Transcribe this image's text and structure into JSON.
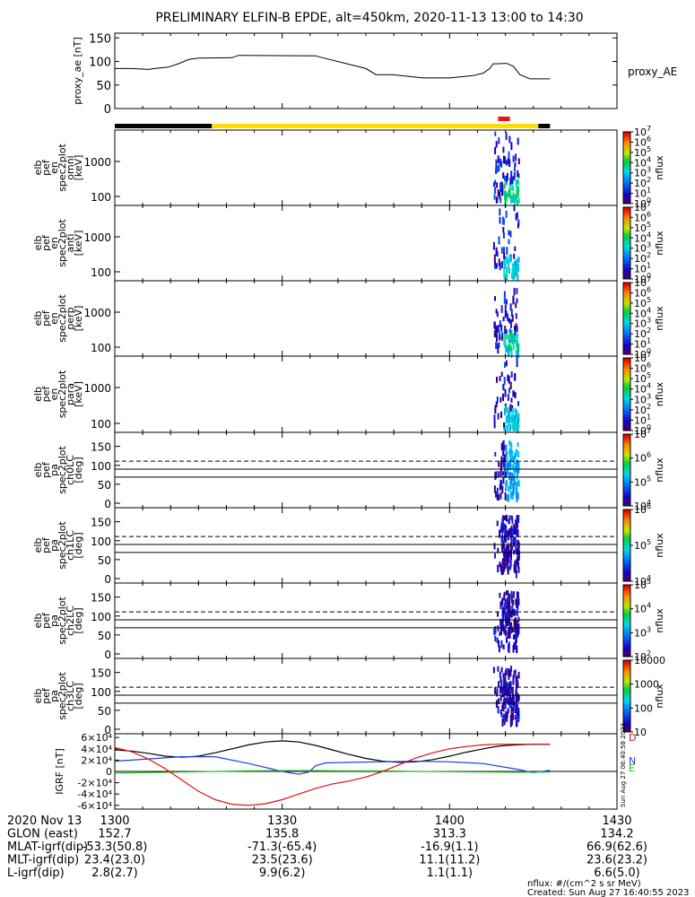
{
  "title": "PRELIMINARY ELFIN-B EPDE, alt=450km, 2020-11-13 13:00 to 14:30",
  "colors": {
    "ae_line": "#000000",
    "bar_black": "#000000",
    "bar_yellow": "#ffdd00",
    "bar_red": "#ee1111",
    "grf_x": "#000000",
    "grf_y": "#1e3ee0",
    "grf_z": "#22bb22",
    "grf_d": "#dd1111"
  },
  "chart_data": [
    {
      "type": "line",
      "id": "proxy_ae",
      "ylabel": "proxy_ae [nT]",
      "series_label": "proxy_AE",
      "yticks": [
        "0",
        "50",
        "100",
        "150"
      ],
      "ylim": [
        0,
        160
      ],
      "x": [
        13.0,
        13.05,
        13.1,
        13.12,
        13.16,
        13.19,
        13.22,
        13.25,
        13.35,
        13.37,
        13.6,
        13.62,
        13.75,
        13.78,
        13.83,
        13.92,
        14.0,
        14.03,
        14.07,
        14.1,
        14.12,
        14.13,
        14.14,
        14.17,
        14.19,
        14.21,
        14.24,
        14.3
      ],
      "values": [
        85,
        85,
        83,
        85,
        88,
        95,
        104,
        107,
        108,
        113,
        112,
        108,
        85,
        72,
        72,
        65,
        65,
        67,
        70,
        75,
        85,
        95,
        95,
        96,
        90,
        72,
        63,
        63
      ]
    },
    {
      "type": "bar",
      "id": "orbit_status_bar",
      "segments": [
        {
          "start": 13.0,
          "end": 13.29,
          "color": "black"
        },
        {
          "start": 13.29,
          "end": 14.265,
          "color": "yellow"
        },
        {
          "start": 14.265,
          "end": 14.3,
          "color": "black"
        }
      ],
      "science_zone": {
        "start": 14.145,
        "end": 14.18,
        "color": "red"
      }
    },
    {
      "type": "heatmap",
      "id": "en_omni",
      "ylabel_lines": [
        "elb",
        "pef",
        "en",
        "spec2plot",
        "omni",
        "[keV]"
      ],
      "yticks": [
        "100",
        "1000"
      ],
      "colorbar": {
        "label": "nflux",
        "ticks": [
          "10",
          "10",
          "10",
          "10",
          "10",
          "10",
          "10",
          "10"
        ],
        "exponents": [
          "0",
          "1",
          "2",
          "3",
          "4",
          "5",
          "6",
          "7"
        ]
      }
    },
    {
      "type": "heatmap",
      "id": "en_anti",
      "ylabel_lines": [
        "elb",
        "pef",
        "en",
        "spec2plot",
        "anti",
        "[keV]"
      ],
      "yticks": [
        "100",
        "1000"
      ],
      "colorbar": {
        "label": "nflux",
        "ticks": [
          "10",
          "10",
          "10",
          "10",
          "10",
          "10",
          "10",
          "10"
        ],
        "exponents": [
          "0",
          "1",
          "2",
          "3",
          "4",
          "5",
          "6",
          "7"
        ]
      }
    },
    {
      "type": "heatmap",
      "id": "en_perp",
      "ylabel_lines": [
        "elb",
        "pef",
        "en",
        "spec2plot",
        "perp",
        "[keV]"
      ],
      "yticks": [
        "100",
        "1000"
      ],
      "colorbar": {
        "label": "nflux",
        "ticks": [
          "10",
          "10",
          "10",
          "10",
          "10",
          "10",
          "10",
          "10"
        ],
        "exponents": [
          "0",
          "1",
          "2",
          "3",
          "4",
          "5",
          "6",
          "7"
        ]
      }
    },
    {
      "type": "heatmap",
      "id": "en_para",
      "ylabel_lines": [
        "elb",
        "pef",
        "en",
        "spec2plot",
        "para",
        "[keV]"
      ],
      "yticks": [
        "100",
        "1000"
      ],
      "colorbar": {
        "label": "nflux",
        "ticks": [
          "10",
          "10",
          "10",
          "10",
          "10",
          "10",
          "10",
          "10"
        ],
        "exponents": [
          "0",
          "1",
          "2",
          "3",
          "4",
          "5",
          "6",
          "7"
        ]
      }
    },
    {
      "type": "heatmap",
      "id": "pa_ch0",
      "ylabel_lines": [
        "elb",
        "pef",
        "pa",
        "spec2plot",
        "ch0LC",
        "[deg]"
      ],
      "yticks": [
        "0",
        "50",
        "100",
        "150"
      ],
      "ylim": [
        0,
        180
      ],
      "loss_cone_lines": {
        "dashed": 111,
        "solid": [
          90,
          69
        ]
      },
      "colorbar": {
        "label": "nflux",
        "ticks": [
          "10",
          "10",
          "10",
          "10"
        ],
        "exponents": [
          "4",
          "5",
          "6",
          "7"
        ]
      }
    },
    {
      "type": "heatmap",
      "id": "pa_ch1",
      "ylabel_lines": [
        "elb",
        "pef",
        "pa",
        "spec2plot",
        "ch1LC",
        "[deg]"
      ],
      "yticks": [
        "0",
        "50",
        "100",
        "150"
      ],
      "ylim": [
        0,
        180
      ],
      "loss_cone_lines": {
        "dashed": 111,
        "solid": [
          90,
          69
        ]
      },
      "colorbar": {
        "label": "nflux",
        "ticks": [
          "10",
          "10",
          "10"
        ],
        "exponents": [
          "4",
          "5",
          "6"
        ]
      }
    },
    {
      "type": "heatmap",
      "id": "pa_ch2",
      "ylabel_lines": [
        "elb",
        "pef",
        "pa",
        "spec2plot",
        "ch2LC",
        "[deg]"
      ],
      "yticks": [
        "0",
        "50",
        "100",
        "150"
      ],
      "ylim": [
        0,
        180
      ],
      "loss_cone_lines": {
        "dashed": 111,
        "solid": [
          90,
          69
        ]
      },
      "colorbar": {
        "label": "nflux",
        "ticks": [
          "10",
          "10",
          "10",
          "10"
        ],
        "exponents": [
          "2",
          "3",
          "4",
          "5"
        ]
      }
    },
    {
      "type": "heatmap",
      "id": "pa_ch3",
      "ylabel_lines": [
        "elb",
        "pef",
        "pa",
        "spec2plot",
        "ch3LC",
        "[deg]"
      ],
      "yticks": [
        "0",
        "50",
        "100",
        "150"
      ],
      "ylim": [
        0,
        180
      ],
      "loss_cone_lines": {
        "dashed": 111,
        "solid": [
          90,
          69
        ]
      },
      "colorbar": {
        "label": "nflux",
        "ticks": [
          "10",
          "100",
          "1000",
          "10000"
        ]
      }
    },
    {
      "type": "line",
      "id": "igrf",
      "ylabel": "IGRF [nT]",
      "yticks": [
        "-6×10⁴",
        "-4×10⁴",
        "-2×10⁴",
        "0",
        "2×10⁴",
        "4×10⁴",
        "6×10⁴"
      ],
      "ylim": [
        -65000,
        65000
      ],
      "series": [
        {
          "name": "X",
          "x": [
            13.0,
            13.05,
            13.1,
            13.15,
            13.2,
            13.25,
            13.3,
            13.35,
            13.4,
            13.45,
            13.5,
            13.55,
            13.6,
            13.65,
            13.7,
            13.75,
            13.8,
            13.85,
            13.9,
            13.95,
            14.0,
            14.05,
            14.1,
            14.15,
            14.2,
            14.25,
            14.3
          ],
          "values": [
            38000,
            36000,
            32000,
            27000,
            25000,
            27000,
            33000,
            40000,
            47000,
            52000,
            54000,
            52000,
            46000,
            38000,
            30000,
            23000,
            18000,
            16000,
            17000,
            21000,
            27000,
            34000,
            40000,
            45000,
            47000,
            48000,
            48000
          ]
        },
        {
          "name": "Y",
          "x": [
            13.0,
            13.1,
            13.2,
            13.3,
            13.4,
            13.5,
            13.55,
            13.58,
            13.6,
            13.63,
            13.7,
            13.8,
            13.9,
            14.0,
            14.1,
            14.2,
            14.25,
            14.3
          ],
          "values": [
            18000,
            22000,
            26000,
            26000,
            14000,
            0,
            -5000,
            -1000,
            10000,
            15000,
            16000,
            17000,
            18000,
            17000,
            14000,
            4000,
            -2000,
            2000
          ]
        },
        {
          "name": "Z",
          "x": [
            13.0,
            13.1,
            13.2,
            13.3,
            13.4,
            13.5,
            13.6,
            13.7,
            13.8,
            13.9,
            14.0,
            14.1,
            14.2,
            14.3
          ],
          "values": [
            -3000,
            -2000,
            -1000,
            0,
            1000,
            1500,
            1500,
            1000,
            1000,
            0,
            -500,
            -1000,
            -1500,
            -1000
          ]
        },
        {
          "name": "D",
          "x": [
            13.0,
            13.05,
            13.1,
            13.15,
            13.2,
            13.25,
            13.3,
            13.35,
            13.4,
            13.45,
            13.5,
            13.55,
            13.6,
            13.65,
            13.7,
            13.75,
            13.8,
            13.85,
            13.9,
            13.95,
            14.0,
            14.05,
            14.1,
            14.15,
            14.2,
            14.25,
            14.3
          ],
          "values": [
            42000,
            35000,
            22000,
            5000,
            -15000,
            -35000,
            -50000,
            -58000,
            -60000,
            -57000,
            -50000,
            -40000,
            -30000,
            -22000,
            -17000,
            -10000,
            0,
            12000,
            24000,
            33000,
            40000,
            44000,
            47000,
            48000,
            48000,
            48000,
            48000
          ]
        }
      ],
      "legend_letters": [
        "N",
        "E",
        "D"
      ],
      "side_note": "Sun Aug 27 06:40:58 2023"
    }
  ],
  "footer": {
    "rows": [
      {
        "label": "2020 Nov 13",
        "values": [
          "1300",
          "1330",
          "1400",
          "1430"
        ]
      },
      {
        "label": "GLON (east)",
        "values": [
          "152.7",
          "135.8",
          "313.3",
          "134.2"
        ]
      },
      {
        "label": "MLAT-igrf(dip)",
        "values": [
          "-53.3(50.8)",
          "-71.3(-65.4)",
          "-16.9(1.1)",
          "66.9(62.6)"
        ]
      },
      {
        "label": "MLT-igrf(dip)",
        "values": [
          "23.4(23.0)",
          "23.5(23.6)",
          "11.1(11.2)",
          "23.6(23.2)"
        ]
      },
      {
        "label": "L-igrf(dip)",
        "values": [
          "2.8(2.7)",
          "9.9(6.2)",
          "1.1(1.1)",
          "6.6(5.0)"
        ]
      }
    ],
    "nflux_unit": "nflux: #/(cm^2 s sr MeV)",
    "created": "Created: Sun Aug 27 16:40:55 2023"
  }
}
